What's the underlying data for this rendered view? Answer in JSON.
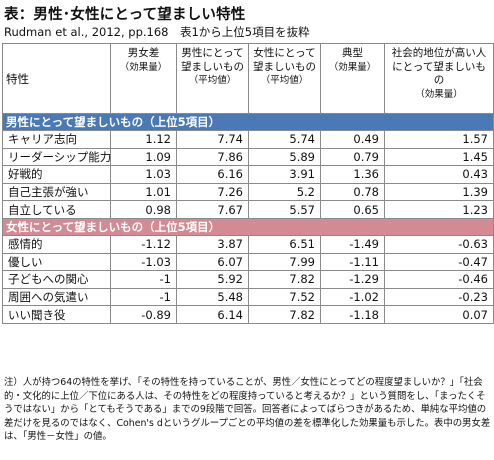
{
  "title": "表：男性･女性にとって望ましい特性",
  "subtitle": "Rudman et al., 2012, pp.168　表1から上位5項目を抜粋",
  "headers": {
    "trait": "特性",
    "diff_main": "男女差",
    "diff_sub": "（効果量）",
    "male_main": "男性にとって望ましいもの",
    "male_sub": "（平均値）",
    "female_main": "女性にとって望ましいもの",
    "female_sub": "（平均値）",
    "typical_main": "典型",
    "typical_sub": "（効果量）",
    "social_main": "社会的地位が高い人にとって望ましいもの",
    "social_sub": "（効果量）"
  },
  "sections": [
    {
      "title": "男性にとって望ましいもの（上位5項目）",
      "rows": [
        {
          "trait": "キャリア志向",
          "diff": "1.12",
          "male": "7.74",
          "female": "5.74",
          "typical": "0.49",
          "social": "1.57"
        },
        {
          "trait": "リーダーシップ能力",
          "diff": "1.09",
          "male": "7.86",
          "female": "5.89",
          "typical": "0.79",
          "social": "1.45"
        },
        {
          "trait": "好戦的",
          "diff": "1.03",
          "male": "6.16",
          "female": "3.91",
          "typical": "1.36",
          "social": "0.43"
        },
        {
          "trait": "自己主張が強い",
          "diff": "1.01",
          "male": "7.26",
          "female": "5.2",
          "typical": "0.78",
          "social": "1.39"
        },
        {
          "trait": "自立している",
          "diff": "0.98",
          "male": "7.67",
          "female": "5.57",
          "typical": "0.65",
          "social": "1.23"
        }
      ]
    },
    {
      "title": "女性にとって望ましいもの（上位5項目）",
      "rows": [
        {
          "trait": "感情的",
          "diff": "-1.12",
          "male": "3.87",
          "female": "6.51",
          "typical": "-1.49",
          "social": "-0.63"
        },
        {
          "trait": "優しい",
          "diff": "-1.03",
          "male": "6.07",
          "female": "7.99",
          "typical": "-1.11",
          "social": "-0.47"
        },
        {
          "trait": "子どもへの関心",
          "diff": "-1",
          "male": "5.92",
          "female": "7.82",
          "typical": "-1.29",
          "social": "-0.46"
        },
        {
          "trait": "周囲への気遣い",
          "diff": "-1",
          "male": "5.48",
          "female": "7.52",
          "typical": "-1.02",
          "social": "-0.23"
        },
        {
          "trait": "いい聞き役",
          "diff": "-0.89",
          "male": "6.14",
          "female": "7.82",
          "typical": "-1.18",
          "social": "0.07"
        }
      ]
    }
  ],
  "note": "注）人が持つ64の特性を挙げ、「その特性を持っていることが、男性／女性にとってどの程度望ましいか？」「社会的・文化的に上位／下位にある人は、その特性をどの程度持っていると考えるか？」という質問をし、「まったくそうではない」から「とてもそうである」までの9段階で回答。回答者によってばらつきがあるため、単純な平均値の差だけを見るのではなく、Cohen's dというグループごとの平均値の差を標準化した効果量も示した。表中の男女差は、「男性－女性」の値。"
}
